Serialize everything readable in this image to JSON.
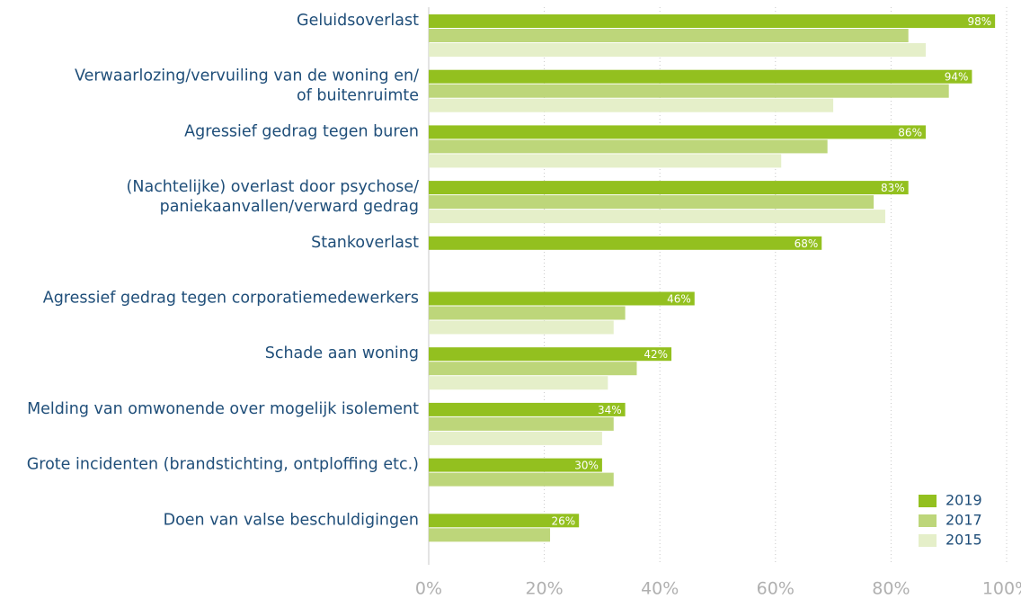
{
  "chart_data": {
    "type": "bar",
    "orientation": "horizontal",
    "categories": [
      "Geluidsoverlast",
      "Verwaarlozing/vervuiling van de woning en/\nof buitenruimte",
      "Agressief gedrag tegen buren",
      "(Nachtelijke) overlast door psychose/\npaniekaanvallen/verward gedrag",
      "Stankoverlast",
      "Agressief gedrag tegen corporatiemedewerkers",
      "Schade aan woning",
      "Melding van omwonende over mogelijk isolement",
      "Grote incidenten (brandstichting, ontploffing etc.)",
      "Doen van valse beschuldigingen"
    ],
    "series": [
      {
        "name": "2019",
        "color": "#93c01f",
        "values": [
          98,
          94,
          86,
          83,
          68,
          46,
          42,
          34,
          30,
          26
        ],
        "value_labels": [
          "98%",
          "94%",
          "86%",
          "83%",
          "68%",
          "46%",
          "42%",
          "34%",
          "30%",
          "26%"
        ]
      },
      {
        "name": "2017",
        "color": "#bdd67a",
        "values": [
          83,
          90,
          69,
          77,
          null,
          34,
          36,
          32,
          32,
          21
        ]
      },
      {
        "name": "2015",
        "color": "#e5efc9",
        "values": [
          86,
          70,
          61,
          79,
          null,
          32,
          31,
          30,
          null,
          null
        ]
      }
    ],
    "xlim": [
      0,
      100
    ],
    "xticks": [
      {
        "value": 0,
        "label": "0%"
      },
      {
        "value": 20,
        "label": "20%"
      },
      {
        "value": 40,
        "label": "40%"
      },
      {
        "value": 60,
        "label": "60%"
      },
      {
        "value": 80,
        "label": "80%"
      },
      {
        "value": 100,
        "label": "100%"
      }
    ],
    "grid": true,
    "legend": "lower right"
  }
}
